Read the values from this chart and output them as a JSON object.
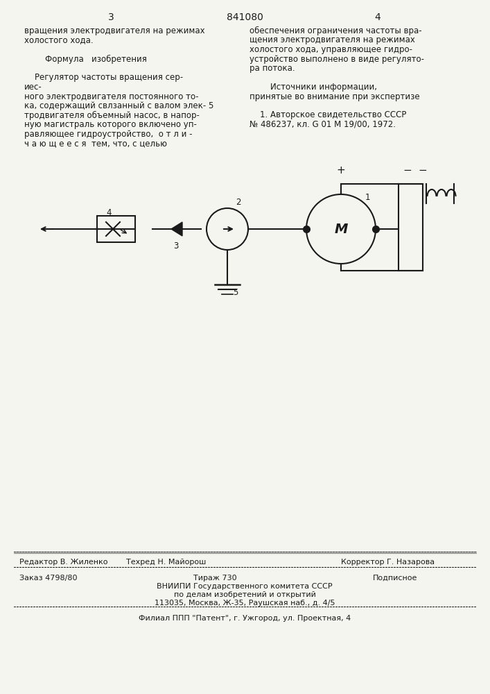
{
  "page_numbers": [
    "3",
    "4"
  ],
  "patent_number": "841080",
  "bg_color": "#f5f5f0",
  "text_color": "#1a1a1a",
  "left_column": {
    "lines": [
      "вращения электродвигателя на режимах",
      "холостого хода.",
      "",
      "        Формула   изобретения",
      "",
      "    Регулятор частоты вращения сер-",
      "ес-",
      "ного электродвигателя постоянного то-",
      "ка, содержащий свлзанный с валом элек- 5",
      "тродвигателя объемный насос, в напор-",
      "ную магистраль которого включено уп-",
      "равляющее гидроустройство, о т л и -",
      "ч а ю щ е е с я  тем, что, с целью"
    ]
  },
  "right_column": {
    "lines": [
      "обеспечения ограничения частоты вра-",
      "щения электродвигателя на режимах",
      "холостого хода, управляющее гидро-",
      "устройство выполнено в виде регулято-",
      "ра потока.",
      "",
      "        Источники информации,",
      "принятые во внимание при экспертизе",
      "",
      "    1. Авторское свидетельство СССР",
      "№ 486237, кл. G 01 M 19/00, 1972."
    ]
  },
  "footer": {
    "editor": "Редактор В. Жиленко",
    "techred": "Техред Н. Майорош",
    "corrector": "Корректор Г. Назарова",
    "order": "Заказ 4798/80",
    "tirazh": "Тираж 730",
    "podpisnoe": "Подписное",
    "vniipи": "ВНИИПИ Государственного комитета СССР",
    "po_delam": "по делам изобретений и открытий",
    "address": "113035, Москва, Ж-35, Раушская наб., д. 4/5",
    "filial": "Филиал ППП \"Патент\", г. Ужгород, ул. Проектная, 4"
  }
}
